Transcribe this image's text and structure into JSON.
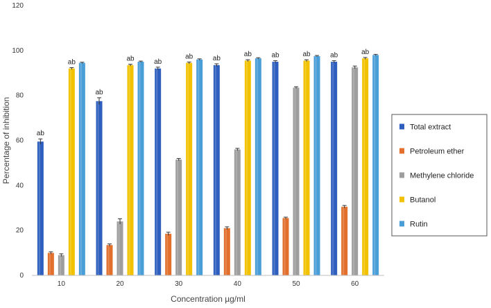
{
  "chart_data": {
    "type": "bar",
    "xlabel": "Concentration µg/ml",
    "ylabel": "Percentage of inhibition",
    "ylim": [
      0,
      120
    ],
    "yticks": [
      0,
      20,
      40,
      60,
      80,
      100,
      120
    ],
    "grid": false,
    "legend_position": "right",
    "categories": [
      "10",
      "20",
      "30",
      "40",
      "50",
      "60"
    ],
    "series": [
      {
        "name": "Total extract",
        "color": "#2E5FBF",
        "values": [
          59.5,
          77.5,
          92,
          93.5,
          95,
          95
        ],
        "errors": [
          1.2,
          1.5,
          0.6,
          0.6,
          0.5,
          0.5
        ],
        "labels": [
          "ab",
          "ab",
          "ab",
          "ab",
          "ab",
          "ab"
        ]
      },
      {
        "name": "Petroleum ether",
        "color": "#E2702C",
        "values": [
          10,
          13.5,
          18.5,
          21,
          25.5,
          30.5
        ],
        "errors": [
          0.5,
          0.5,
          0.7,
          0.6,
          0.4,
          0.6
        ],
        "labels": [
          "",
          "",
          "",
          "",
          "",
          ""
        ]
      },
      {
        "name": "Methylene chloride",
        "color": "#9E9E9E",
        "values": [
          9,
          24,
          51.5,
          56,
          83.5,
          92.5
        ],
        "errors": [
          0.6,
          1.2,
          0.5,
          0.5,
          0.4,
          0.6
        ],
        "labels": [
          "",
          "",
          "",
          "",
          "",
          ""
        ]
      },
      {
        "name": "Butanol",
        "color": "#F2C200",
        "values": [
          92,
          93.5,
          94.5,
          95.5,
          95.5,
          96.5
        ],
        "errors": [
          0.4,
          0.4,
          0.4,
          0.4,
          0.4,
          0.4
        ],
        "labels": [
          "ab",
          "ab",
          "ab",
          "ab",
          "ab",
          "ab"
        ]
      },
      {
        "name": "Rutin",
        "color": "#4A9ED8",
        "values": [
          94.5,
          95,
          96,
          96.5,
          97.5,
          98
        ],
        "errors": [
          0.3,
          0.3,
          0.3,
          0.3,
          0.3,
          0.3
        ],
        "labels": [
          "",
          "",
          "",
          "",
          "",
          ""
        ]
      }
    ]
  }
}
